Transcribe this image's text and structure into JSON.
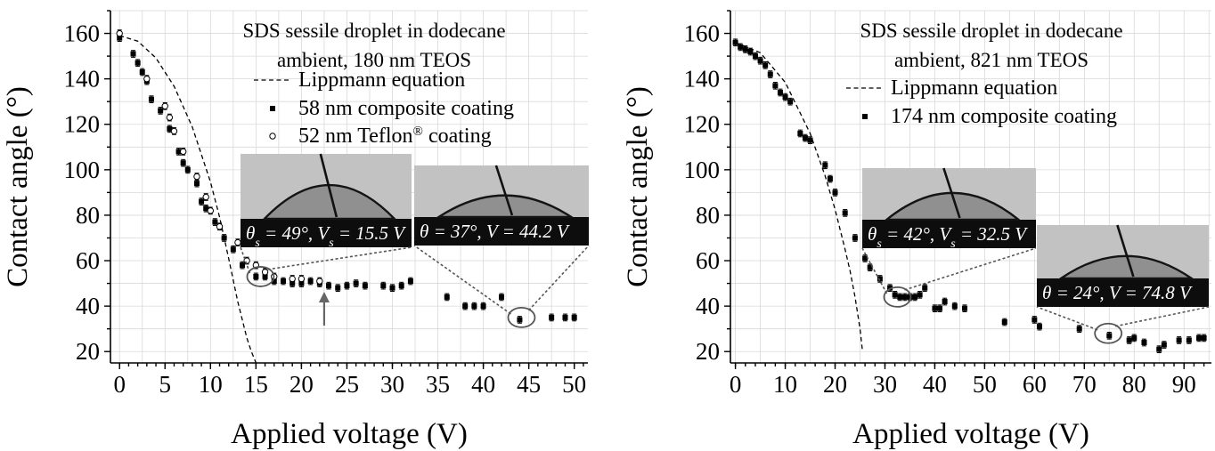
{
  "chart_data": [
    {
      "type": "scatter",
      "xlabel": "Applied voltage (V)",
      "ylabel": "Contact angle (°)",
      "xlim": [
        -1,
        51.5
      ],
      "ylim": [
        15,
        170
      ],
      "xticks": [
        0,
        5,
        10,
        15,
        20,
        25,
        30,
        35,
        40,
        45,
        50
      ],
      "xtick_labels": [
        "0",
        "5",
        "10",
        "15",
        "20",
        "25",
        "30",
        "35",
        "40",
        "45",
        "50"
      ],
      "yticks": [
        20,
        40,
        60,
        80,
        100,
        120,
        140,
        160
      ],
      "ytick_labels": [
        "20",
        "40",
        "60",
        "80",
        "100",
        "120",
        "140",
        "160"
      ],
      "grid": true,
      "annotation": [
        "SDS sessile droplet in dodecane",
        "ambient, 180 nm TEOS"
      ],
      "legend": [
        "Lippmann equation",
        "58 nm composite coating",
        "52 nm Teflon® coating"
      ],
      "legend_placement": "top-right",
      "series": [
        {
          "name": "Lippmann equation",
          "kind": "line",
          "x": [
            0,
            2,
            4,
            6,
            8,
            10,
            11,
            12,
            13,
            14,
            14.5,
            15
          ],
          "y": [
            159,
            156.6,
            149.2,
            136.7,
            118.8,
            94.6,
            79.2,
            61.0,
            42.0,
            26.0,
            20.0,
            15.0
          ]
        },
        {
          "name": "58 nm composite coating",
          "kind": "markers-square",
          "x": [
            0,
            1.5,
            2,
            2.5,
            3,
            3.5,
            4.5,
            5.5,
            6.5,
            7,
            7.5,
            8.5,
            9,
            9.5,
            10.5,
            11.5,
            12.5,
            13.5,
            15,
            16,
            17,
            18,
            19,
            20,
            21,
            22,
            23,
            24,
            25,
            26,
            27,
            29,
            30,
            31,
            32,
            36,
            38,
            39,
            40,
            42,
            44,
            47.5,
            49,
            50
          ],
          "y": [
            158,
            151,
            147,
            143,
            139,
            131,
            126,
            118,
            108,
            103,
            100,
            94,
            86,
            83,
            77,
            70,
            65,
            58,
            53,
            53,
            51,
            51,
            50,
            50,
            51,
            50,
            49,
            48,
            49,
            50,
            49,
            49,
            48,
            49,
            51,
            44,
            40,
            40,
            40,
            44,
            34,
            35,
            35,
            35
          ],
          "yerr": [
            1.5,
            1.5,
            1.5,
            1.5,
            1.5,
            1.5,
            1.5,
            1.5,
            1.5,
            1.5,
            1.5,
            1.5,
            1.5,
            1.5,
            1.5,
            1.5,
            1.5,
            1.5,
            1.5,
            1.5,
            1.5,
            1.5,
            1.5,
            1.5,
            1.5,
            1.5,
            1.5,
            1.5,
            1.5,
            1.5,
            1.5,
            1.5,
            1.5,
            1.5,
            1.5,
            1.5,
            1.5,
            1.5,
            1.5,
            1.5,
            1.5,
            1.5,
            1.5,
            1.5
          ]
        },
        {
          "name": "52 nm Teflon® coating",
          "kind": "markers-open",
          "x": [
            0,
            3,
            5,
            5.5,
            6,
            7,
            8.5,
            9.5,
            10,
            11,
            13,
            14,
            15,
            16,
            17,
            19,
            20,
            22
          ],
          "y": [
            160,
            140,
            128,
            123,
            117,
            108,
            97,
            88,
            82,
            75,
            68,
            60,
            58,
            55,
            53,
            52,
            52,
            51
          ],
          "yerr": [
            1.5,
            1.5,
            1.5,
            1.5,
            1.5,
            1.5,
            1.5,
            1.5,
            1.5,
            1.5,
            1.5,
            1.5,
            1.5,
            1.5,
            1.5,
            1.5,
            1.5,
            1.5
          ]
        }
      ],
      "insets": [
        {
          "caption_parts": [
            "θ",
            "s",
            " = 49°, ",
            "V",
            "s",
            " = 15.5 V"
          ],
          "points_to": {
            "x": 15.5,
            "y": 53
          }
        },
        {
          "caption_parts": [
            "θ",
            "",
            " = 37°, ",
            "V",
            "",
            " = 44.2 V"
          ],
          "points_to": {
            "x": 44.2,
            "y": 35
          }
        }
      ],
      "arrow_at": {
        "x": 22.5,
        "y": 51
      }
    },
    {
      "type": "scatter",
      "xlabel": "Applied voltage (V)",
      "ylabel": "Contact angle (°)",
      "xlim": [
        -1,
        95.5
      ],
      "ylim": [
        15,
        170
      ],
      "xticks": [
        0,
        10,
        20,
        30,
        40,
        50,
        60,
        70,
        80,
        90
      ],
      "xtick_labels": [
        "0",
        "10",
        "20",
        "30",
        "40",
        "50",
        "60",
        "70",
        "80",
        "90"
      ],
      "yticks": [
        20,
        40,
        60,
        80,
        100,
        120,
        140,
        160
      ],
      "ytick_labels": [
        "20",
        "40",
        "60",
        "80",
        "100",
        "120",
        "140",
        "160"
      ],
      "grid": true,
      "annotation": [
        "SDS sessile droplet in dodecane",
        "ambient, 821 nm TEOS"
      ],
      "legend": [
        "Lippmann equation",
        "174 nm composite coating"
      ],
      "legend_placement": "top-right",
      "series": [
        {
          "name": "Lippmann equation",
          "kind": "line",
          "x": [
            0,
            5,
            10,
            15,
            18,
            20,
            22,
            23,
            24,
            25,
            25.5
          ],
          "y": [
            156,
            151.5,
            138.4,
            116.0,
            97.3,
            82.5,
            65.0,
            55.5,
            44.0,
            30.0,
            20.0
          ]
        },
        {
          "name": "174 nm composite coating",
          "kind": "markers-square",
          "x": [
            0,
            1,
            2,
            3,
            4,
            5,
            6,
            7,
            8,
            9,
            10,
            11,
            13,
            14,
            15,
            18,
            19,
            20,
            22,
            24,
            26,
            27,
            29,
            31,
            32,
            33,
            34,
            35,
            36,
            37,
            38,
            40,
            41,
            42,
            44,
            46,
            54,
            60,
            61,
            69,
            75,
            79,
            80,
            82,
            85,
            86,
            89,
            91,
            93,
            94
          ],
          "y": [
            156,
            154,
            153,
            152,
            150,
            148,
            146,
            142,
            137,
            134,
            132,
            130,
            116,
            114,
            113,
            102,
            96,
            90,
            81,
            70,
            61,
            57,
            52,
            48,
            45,
            44,
            44,
            44,
            44,
            45,
            48,
            39,
            39,
            42,
            40,
            39,
            33,
            34,
            31,
            30,
            27,
            25,
            26,
            24,
            21,
            23,
            25,
            25,
            26,
            26
          ],
          "yerr": [
            1.5,
            1.5,
            1.5,
            1.5,
            1.5,
            1.5,
            1.5,
            1.5,
            1.5,
            1.5,
            1.5,
            1.5,
            1.5,
            1.5,
            1.5,
            1.5,
            1.5,
            1.5,
            1.5,
            1.5,
            1.5,
            1.5,
            1.5,
            1.5,
            1.5,
            1.5,
            1.5,
            1.5,
            1.5,
            1.5,
            1.5,
            1.5,
            1.5,
            1.5,
            1.5,
            1.5,
            1.5,
            1.5,
            1.5,
            1.5,
            1.5,
            1.5,
            1.5,
            1.5,
            1.5,
            1.5,
            1.5,
            1.5,
            1.5,
            1.5
          ]
        }
      ],
      "insets": [
        {
          "caption_parts": [
            "θ",
            "s",
            " = 42°, ",
            "V",
            "s",
            " = 32.5 V"
          ],
          "points_to": {
            "x": 32.5,
            "y": 44
          }
        },
        {
          "caption_parts": [
            "θ",
            "",
            " = 24°, ",
            "V",
            "",
            " = 74.8 V"
          ],
          "points_to": {
            "x": 74.8,
            "y": 28
          }
        }
      ]
    }
  ]
}
